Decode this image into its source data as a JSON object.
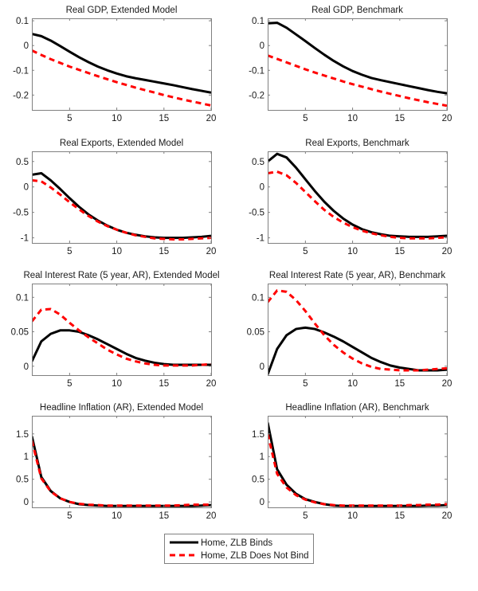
{
  "chart_data": [
    {
      "type": "line",
      "title": "Real GDP, Extended Model",
      "xlabel": "",
      "ylabel": "",
      "xlim": [
        1,
        20
      ],
      "ylim": [
        -0.26,
        0.11
      ],
      "xticks": [
        5,
        10,
        15,
        20
      ],
      "yticks": [
        -0.2,
        -0.1,
        0,
        0.1
      ],
      "ytick_labels": [
        "-0.2",
        "-0.1",
        "0",
        "0.1"
      ],
      "grid": false,
      "x": [
        1,
        2,
        3,
        4,
        5,
        6,
        7,
        8,
        9,
        10,
        11,
        12,
        13,
        14,
        15,
        16,
        17,
        18,
        19,
        20
      ],
      "series": [
        {
          "name": "Home, ZLB Binds",
          "values": [
            0.047,
            0.038,
            0.02,
            -0.002,
            -0.025,
            -0.047,
            -0.067,
            -0.085,
            -0.1,
            -0.113,
            -0.124,
            -0.132,
            -0.139,
            -0.146,
            -0.153,
            -0.16,
            -0.168,
            -0.176,
            -0.183,
            -0.19
          ]
        },
        {
          "name": "Home, ZLB Does Not Bind",
          "values": [
            -0.02,
            -0.038,
            -0.055,
            -0.07,
            -0.085,
            -0.098,
            -0.111,
            -0.124,
            -0.136,
            -0.148,
            -0.159,
            -0.17,
            -0.18,
            -0.19,
            -0.2,
            -0.209,
            -0.218,
            -0.226,
            -0.234,
            -0.242
          ]
        }
      ]
    },
    {
      "type": "line",
      "title": "Real GDP, Benchmark",
      "xlabel": "",
      "ylabel": "",
      "xlim": [
        1,
        20
      ],
      "ylim": [
        -0.26,
        0.11
      ],
      "xticks": [
        5,
        10,
        15,
        20
      ],
      "yticks": [
        -0.2,
        -0.1,
        0,
        0.1
      ],
      "ytick_labels": [
        "-0.2",
        "-0.1",
        "0",
        "0.1"
      ],
      "grid": false,
      "x": [
        1,
        2,
        3,
        4,
        5,
        6,
        7,
        8,
        9,
        10,
        11,
        12,
        13,
        14,
        15,
        16,
        17,
        18,
        19,
        20
      ],
      "series": [
        {
          "name": "Home, ZLB Binds",
          "values": [
            0.09,
            0.092,
            0.072,
            0.045,
            0.018,
            -0.01,
            -0.037,
            -0.062,
            -0.084,
            -0.103,
            -0.118,
            -0.131,
            -0.14,
            -0.148,
            -0.156,
            -0.164,
            -0.172,
            -0.18,
            -0.187,
            -0.193
          ]
        },
        {
          "name": "Home, ZLB Does Not Bind",
          "values": [
            -0.04,
            -0.054,
            -0.068,
            -0.082,
            -0.096,
            -0.109,
            -0.121,
            -0.133,
            -0.145,
            -0.156,
            -0.166,
            -0.176,
            -0.186,
            -0.195,
            -0.204,
            -0.213,
            -0.221,
            -0.229,
            -0.236,
            -0.243
          ]
        }
      ]
    },
    {
      "type": "line",
      "title": "Real Exports, Extended Model",
      "xlabel": "",
      "ylabel": "",
      "xlim": [
        1,
        20
      ],
      "ylim": [
        -1.1,
        0.7
      ],
      "xticks": [
        5,
        10,
        15,
        20
      ],
      "yticks": [
        -1,
        -0.5,
        0,
        0.5
      ],
      "ytick_labels": [
        "-1",
        "-0.5",
        "0",
        "0.5"
      ],
      "grid": false,
      "x": [
        1,
        2,
        3,
        4,
        5,
        6,
        7,
        8,
        9,
        10,
        11,
        12,
        13,
        14,
        15,
        16,
        17,
        18,
        19,
        20
      ],
      "series": [
        {
          "name": "Home, ZLB Binds",
          "values": [
            0.24,
            0.27,
            0.13,
            -0.04,
            -0.22,
            -0.39,
            -0.54,
            -0.66,
            -0.76,
            -0.84,
            -0.9,
            -0.94,
            -0.97,
            -0.99,
            -1.0,
            -1.0,
            -1.0,
            -0.99,
            -0.98,
            -0.96
          ]
        },
        {
          "name": "Home, ZLB Does Not Bind",
          "values": [
            0.13,
            0.11,
            -0.01,
            -0.15,
            -0.3,
            -0.44,
            -0.57,
            -0.68,
            -0.77,
            -0.84,
            -0.9,
            -0.95,
            -0.98,
            -1.01,
            -1.02,
            -1.03,
            -1.03,
            -1.02,
            -1.01,
            -1.0
          ]
        }
      ]
    },
    {
      "type": "line",
      "title": "Real Exports, Benchmark",
      "xlabel": "",
      "ylabel": "",
      "xlim": [
        1,
        20
      ],
      "ylim": [
        -1.1,
        0.7
      ],
      "xticks": [
        5,
        10,
        15,
        20
      ],
      "yticks": [
        -1,
        -0.5,
        0,
        0.5
      ],
      "ytick_labels": [
        "-1",
        "-0.5",
        "0",
        "0.5"
      ],
      "grid": false,
      "x": [
        1,
        2,
        3,
        4,
        5,
        6,
        7,
        8,
        9,
        10,
        11,
        12,
        13,
        14,
        15,
        16,
        17,
        18,
        19,
        20
      ],
      "series": [
        {
          "name": "Home, ZLB Binds",
          "values": [
            0.5,
            0.65,
            0.58,
            0.38,
            0.15,
            -0.08,
            -0.29,
            -0.47,
            -0.62,
            -0.74,
            -0.83,
            -0.89,
            -0.93,
            -0.96,
            -0.97,
            -0.98,
            -0.98,
            -0.98,
            -0.97,
            -0.96
          ]
        },
        {
          "name": "Home, ZLB Does Not Bind",
          "values": [
            0.27,
            0.3,
            0.23,
            0.08,
            -0.1,
            -0.28,
            -0.45,
            -0.59,
            -0.7,
            -0.79,
            -0.86,
            -0.91,
            -0.95,
            -0.98,
            -1.0,
            -1.01,
            -1.01,
            -1.01,
            -1.0,
            -0.99
          ]
        }
      ]
    },
    {
      "type": "line",
      "title": "Real Interest Rate (5 year, AR), Extended Model",
      "xlabel": "",
      "ylabel": "",
      "xlim": [
        1,
        20
      ],
      "ylim": [
        -0.013,
        0.12
      ],
      "xticks": [
        5,
        10,
        15,
        20
      ],
      "yticks": [
        0,
        0.05,
        0.1
      ],
      "ytick_labels": [
        "0",
        "0.05",
        "0.1"
      ],
      "grid": false,
      "x": [
        1,
        2,
        3,
        4,
        5,
        6,
        7,
        8,
        9,
        10,
        11,
        12,
        13,
        14,
        15,
        16,
        17,
        18,
        19,
        20
      ],
      "series": [
        {
          "name": "Home, ZLB Binds",
          "values": [
            0.007,
            0.036,
            0.047,
            0.052,
            0.052,
            0.05,
            0.045,
            0.039,
            0.032,
            0.025,
            0.018,
            0.012,
            0.008,
            0.005,
            0.003,
            0.002,
            0.002,
            0.002,
            0.002,
            0.002
          ]
        },
        {
          "name": "Home, ZLB Does Not Bind",
          "values": [
            0.065,
            0.082,
            0.083,
            0.075,
            0.063,
            0.052,
            0.042,
            0.033,
            0.024,
            0.017,
            0.011,
            0.007,
            0.004,
            0.002,
            0.001,
            0.001,
            0.001,
            0.001,
            0.002,
            0.003
          ]
        }
      ]
    },
    {
      "type": "line",
      "title": "Real Interest Rate (5 year, AR), Benchmark",
      "xlabel": "",
      "ylabel": "",
      "xlim": [
        1,
        20
      ],
      "ylim": [
        -0.013,
        0.12
      ],
      "xticks": [
        5,
        10,
        15,
        20
      ],
      "yticks": [
        0,
        0.05,
        0.1
      ],
      "ytick_labels": [
        "0",
        "0.05",
        "0.1"
      ],
      "grid": false,
      "x": [
        1,
        2,
        3,
        4,
        5,
        6,
        7,
        8,
        9,
        10,
        11,
        12,
        13,
        14,
        15,
        16,
        17,
        18,
        19,
        20
      ],
      "series": [
        {
          "name": "Home, ZLB Binds",
          "values": [
            -0.012,
            0.025,
            0.045,
            0.054,
            0.056,
            0.054,
            0.049,
            0.043,
            0.036,
            0.028,
            0.02,
            0.012,
            0.006,
            0.001,
            -0.002,
            -0.004,
            -0.006,
            -0.006,
            -0.006,
            -0.005
          ]
        },
        {
          "name": "Home, ZLB Does Not Bind",
          "values": [
            0.093,
            0.11,
            0.108,
            0.096,
            0.08,
            0.062,
            0.045,
            0.031,
            0.02,
            0.011,
            0.004,
            -0.001,
            -0.004,
            -0.005,
            -0.006,
            -0.006,
            -0.006,
            -0.005,
            -0.004,
            -0.003
          ]
        }
      ]
    },
    {
      "type": "line",
      "title": "Headline Inflation (AR), Extended Model",
      "xlabel": "",
      "ylabel": "",
      "xlim": [
        1,
        20
      ],
      "ylim": [
        -0.12,
        1.9
      ],
      "xticks": [
        5,
        10,
        15,
        20
      ],
      "yticks": [
        0,
        0.5,
        1,
        1.5
      ],
      "ytick_labels": [
        "0",
        "0.5",
        "1",
        "1.5"
      ],
      "grid": false,
      "x": [
        1,
        2,
        3,
        4,
        5,
        6,
        7,
        8,
        9,
        10,
        11,
        12,
        13,
        14,
        15,
        16,
        17,
        18,
        19,
        20
      ],
      "series": [
        {
          "name": "Home, ZLB Binds",
          "values": [
            1.45,
            0.55,
            0.24,
            0.08,
            0.0,
            -0.05,
            -0.07,
            -0.08,
            -0.09,
            -0.09,
            -0.09,
            -0.09,
            -0.09,
            -0.09,
            -0.09,
            -0.09,
            -0.09,
            -0.09,
            -0.08,
            -0.07
          ]
        },
        {
          "name": "Home, ZLB Does Not Bind",
          "values": [
            1.35,
            0.52,
            0.23,
            0.08,
            0.0,
            -0.04,
            -0.06,
            -0.07,
            -0.08,
            -0.08,
            -0.08,
            -0.08,
            -0.08,
            -0.08,
            -0.08,
            -0.08,
            -0.07,
            -0.06,
            -0.06,
            -0.06
          ]
        }
      ]
    },
    {
      "type": "line",
      "title": "Headline Inflation (AR), Benchmark",
      "xlabel": "",
      "ylabel": "",
      "xlim": [
        1,
        20
      ],
      "ylim": [
        -0.12,
        1.9
      ],
      "xticks": [
        5,
        10,
        15,
        20
      ],
      "yticks": [
        0,
        0.5,
        1,
        1.5
      ],
      "ytick_labels": [
        "0",
        "0.5",
        "1",
        "1.5"
      ],
      "grid": false,
      "x": [
        1,
        2,
        3,
        4,
        5,
        6,
        7,
        8,
        9,
        10,
        11,
        12,
        13,
        14,
        15,
        16,
        17,
        18,
        19,
        20
      ],
      "series": [
        {
          "name": "Home, ZLB Binds",
          "values": [
            1.75,
            0.72,
            0.38,
            0.18,
            0.06,
            0.0,
            -0.05,
            -0.08,
            -0.09,
            -0.09,
            -0.09,
            -0.09,
            -0.09,
            -0.09,
            -0.09,
            -0.09,
            -0.09,
            -0.08,
            -0.08,
            -0.07
          ]
        },
        {
          "name": "Home, ZLB Does Not Bind",
          "values": [
            1.5,
            0.62,
            0.32,
            0.15,
            0.05,
            -0.01,
            -0.05,
            -0.07,
            -0.08,
            -0.08,
            -0.08,
            -0.08,
            -0.08,
            -0.08,
            -0.08,
            -0.07,
            -0.07,
            -0.06,
            -0.06,
            -0.05
          ]
        }
      ]
    }
  ],
  "legend": {
    "position": "bottom-center",
    "entries": [
      {
        "label": "Home, ZLB Binds",
        "color": "#000000",
        "style": "solid"
      },
      {
        "label": "Home, ZLB Does Not Bind",
        "color": "#ff0000",
        "style": "dashed"
      }
    ]
  },
  "colors": {
    "binds": "#000000",
    "not_binds": "#ff0000",
    "axes": "#808080",
    "text": "#1a1a1a"
  }
}
